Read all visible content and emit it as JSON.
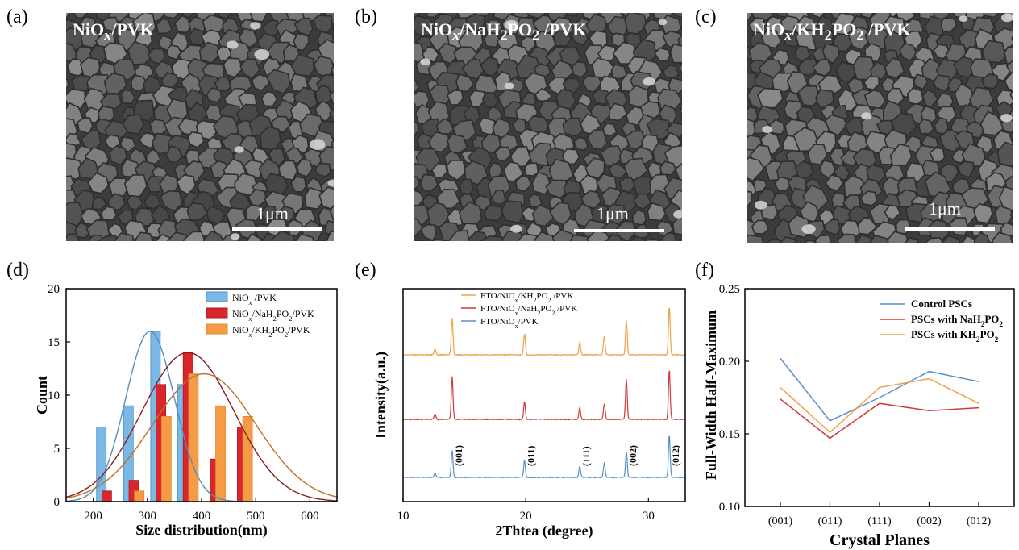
{
  "panels": {
    "a": {
      "letter": "(a)"
    },
    "b": {
      "letter": "(b)"
    },
    "c": {
      "letter": "(c)"
    },
    "d": {
      "letter": "(d)"
    },
    "e": {
      "letter": "(e)"
    },
    "f": {
      "letter": "(f)"
    }
  },
  "sem": [
    {
      "title_base": "NiO",
      "title_sub": "x",
      "title_rest": "/PVK",
      "scale_label": "1μm"
    },
    {
      "title_base": "NiO",
      "title_sub": "x",
      "title_rest": "/NaH",
      "title_sub2": "2",
      "title_rest2": "PO",
      "title_sub3": "2",
      "title_rest3": " /PVK",
      "scale_label": "1μm"
    },
    {
      "title_base": "NiO",
      "title_sub": "x",
      "title_rest": "/KH",
      "title_sub2": "2",
      "title_rest2": "PO",
      "title_sub3": "2",
      "title_rest3": " /PVK",
      "scale_label": "1μm"
    }
  ],
  "colors": {
    "blue": "#5b9bd5",
    "blue_fill": "#7ab8e6",
    "red": "#d62728",
    "red_fill": "#d9252b",
    "orange": "#f5a455",
    "orange_fill": "#f59a45",
    "line_blue": "#5b8fc7",
    "line_red": "#cf3a3a",
    "line_orange": "#f2a04c"
  },
  "chart_data": [
    {
      "id": "d",
      "type": "bar",
      "xlabel": "Size distribution(nm)",
      "ylabel": "Count",
      "xlim": [
        150,
        650
      ],
      "ylim": [
        0,
        20
      ],
      "xticks": [
        200,
        300,
        400,
        500,
        600
      ],
      "yticks": [
        0,
        5,
        10,
        15,
        20
      ],
      "legend_position": "top-right",
      "series": [
        {
          "name": "NiOx /PVK",
          "legend_base": "NiO",
          "legend_sub": "x",
          "legend_rest": " /PVK",
          "x": [
            215,
            265,
            315,
            365
          ],
          "values": [
            7,
            9,
            16,
            11
          ],
          "fit": {
            "mean": 305,
            "sd": 45,
            "peak": 16
          }
        },
        {
          "name": "NiOx/NaH2PO2/PVK",
          "legend_base": "NiO",
          "legend_sub": "x",
          "legend_rest": "/NaH",
          "legend_sub2": "2",
          "legend_rest2": "PO",
          "legend_sub3": "2",
          "legend_rest3": "/PVK",
          "x": [
            225,
            275,
            325,
            375,
            425,
            475
          ],
          "values": [
            1,
            2,
            11,
            14,
            4,
            7
          ],
          "fit": {
            "mean": 375,
            "sd": 85,
            "peak": 14
          }
        },
        {
          "name": "NiOx/KH2PO2/PVK",
          "legend_base": "NiO",
          "legend_sub": "x",
          "legend_rest": "/KH",
          "legend_sub2": "2",
          "legend_rest2": "PO",
          "legend_sub3": "2",
          "legend_rest3": "/PVK",
          "x": [
            285,
            335,
            385,
            435,
            485
          ],
          "values": [
            1,
            8,
            12,
            9,
            8
          ],
          "fit": {
            "mean": 405,
            "sd": 95,
            "peak": 12
          }
        }
      ]
    },
    {
      "id": "e",
      "type": "line",
      "xlabel": "2Thtea (degree)",
      "ylabel": "Intensity(a.u.)",
      "xlim": [
        10,
        33
      ],
      "xticks": [
        10,
        20,
        30
      ],
      "legend_position": "top-left",
      "peaks": [
        {
          "x": 12.6,
          "label": ""
        },
        {
          "x": 14.0,
          "label": "(001)"
        },
        {
          "x": 19.9,
          "label": "(011)"
        },
        {
          "x": 24.4,
          "label": "(111)"
        },
        {
          "x": 26.4,
          "label": ""
        },
        {
          "x": 28.2,
          "label": "(002)"
        },
        {
          "x": 31.7,
          "label": "(012)"
        }
      ],
      "series": [
        {
          "name": "FTO/NiOx/KH2PO2 /PVK",
          "legend_a": "FTO/NiO",
          "legend_sub": "x",
          "legend_b": "/KH",
          "legend_sub2": "2",
          "legend_c": "PO",
          "legend_sub3": "2",
          "legend_d": " /PVK",
          "heights": [
            0.08,
            0.52,
            0.3,
            0.18,
            0.26,
            0.48,
            0.68
          ]
        },
        {
          "name": "FTO/NiOx/NaH2PO2 /PVK",
          "legend_a": "FTO/NiO",
          "legend_sub": "x",
          "legend_b": "/NaH",
          "legend_sub2": "2",
          "legend_c": "PO",
          "legend_sub3": "2",
          "legend_d": " /PVK",
          "heights": [
            0.08,
            0.6,
            0.24,
            0.16,
            0.22,
            0.56,
            0.7
          ]
        },
        {
          "name": "FTO/NiOx/PVK",
          "legend_a": "FTO/NiO",
          "legend_sub": "x",
          "legend_b": "/PVK",
          "heights": [
            0.06,
            0.38,
            0.24,
            0.16,
            0.2,
            0.36,
            0.6
          ]
        }
      ]
    },
    {
      "id": "f",
      "type": "line",
      "xlabel": "Crystal Planes",
      "ylabel": "Full-Width Half-Maximum",
      "categories": [
        "(001)",
        "(011)",
        "(111)",
        "(002)",
        "(012)"
      ],
      "ylim": [
        0.1,
        0.25
      ],
      "yticks": [
        "0.10",
        "0.15",
        "0.20",
        "0.25"
      ],
      "legend_position": "top-right",
      "series": [
        {
          "name": "Control PSCs",
          "legend_text": "Control PSCs",
          "values": [
            0.202,
            0.159,
            0.175,
            0.193,
            0.186
          ]
        },
        {
          "name": "PSCs with NaH2PO2",
          "legend_text": "PSCs with NaH",
          "legend_sub": "2",
          "legend_rest": "PO",
          "legend_sub2": "2",
          "values": [
            0.174,
            0.147,
            0.171,
            0.166,
            0.168
          ]
        },
        {
          "name": "PSCs with KH2PO2",
          "legend_text": "PSCs with KH",
          "legend_sub": "2",
          "legend_rest": "PO",
          "legend_sub2": "2",
          "values": [
            0.182,
            0.151,
            0.182,
            0.188,
            0.171
          ]
        }
      ]
    }
  ]
}
